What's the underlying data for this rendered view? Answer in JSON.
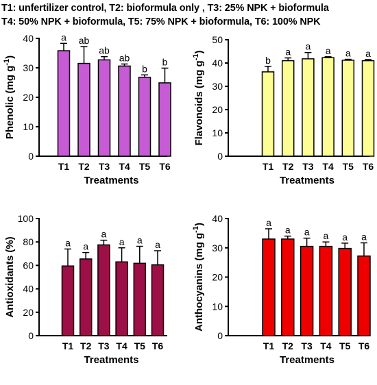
{
  "caption": {
    "line1": "T1: unfertilizer control, T2: bioformula only , T3: 25% NPK + bioformula",
    "line2": "T4: 50% NPK + bioformula, T5: 75% NPK + bioformula, T6: 100% NPK"
  },
  "chart_data": [
    {
      "type": "bar",
      "panel": "phenolic",
      "ylabel": "Phenolic  (mg g",
      "ylabel_sup": "-1",
      "ylabel_end": ")",
      "xlabel": "Treatments",
      "categories": [
        "T1",
        "T2",
        "T3",
        "T4",
        "T5",
        "T6"
      ],
      "values": [
        35.8,
        31.5,
        32.7,
        30.6,
        26.8,
        24.9
      ],
      "errors": [
        2.5,
        5.7,
        1.1,
        0.7,
        0.8,
        5.0
      ],
      "letters": [
        "a",
        "ab",
        "ab",
        "ab",
        "b",
        "b"
      ],
      "ylim": [
        0,
        40
      ],
      "yticks": [
        0,
        10,
        20,
        30,
        40
      ],
      "bar_color": "#c75bd5",
      "grid": false
    },
    {
      "type": "bar",
      "panel": "flavonoids",
      "ylabel": "Flavonoids  (mg g",
      "ylabel_sup": "-1",
      "ylabel_end": ")",
      "xlabel": "Treatments",
      "categories": [
        "T1",
        "T2",
        "T3",
        "T4",
        "T5",
        "T6"
      ],
      "values": [
        36.2,
        41.0,
        41.8,
        42.3,
        41.2,
        41.0
      ],
      "errors": [
        2.4,
        1.2,
        2.7,
        0.4,
        0.4,
        0.5
      ],
      "letters": [
        "b",
        "a",
        "a",
        "a",
        "a",
        "a"
      ],
      "ylim": [
        0,
        50
      ],
      "yticks": [
        0,
        10,
        20,
        30,
        40,
        50
      ],
      "bar_color": "#fdfd96",
      "grid": false
    },
    {
      "type": "bar",
      "panel": "antioxidants",
      "ylabel": "Antioxidants (%)",
      "xlabel": "Treatments",
      "categories": [
        "T1",
        "T2",
        "T3",
        "T4",
        "T5",
        "T6"
      ],
      "values": [
        59.5,
        65.5,
        77.5,
        63.0,
        61.8,
        60.5
      ],
      "errors": [
        14.5,
        5.5,
        4.0,
        12.0,
        14.5,
        12.0
      ],
      "letters": [
        "a",
        "a",
        "a",
        "a",
        "a",
        "a"
      ],
      "ylim": [
        0,
        100
      ],
      "yticks": [
        0,
        20,
        40,
        60,
        80,
        100
      ],
      "bar_color": "#9c0f47",
      "grid": false
    },
    {
      "type": "bar",
      "panel": "anthocyanins",
      "ylabel": "Anthocyanins  (mg g",
      "ylabel_sup": "-1",
      "ylabel_end": ")",
      "xlabel": "Treatments",
      "categories": [
        "T1",
        "T2",
        "T3",
        "T4",
        "T5",
        "T6"
      ],
      "values": [
        33.0,
        33.0,
        30.5,
        30.5,
        29.8,
        27.2
      ],
      "errors": [
        3.5,
        1.0,
        2.8,
        1.5,
        1.8,
        4.5
      ],
      "letters": [
        "a",
        "a",
        "a",
        "a",
        "a",
        "a"
      ],
      "ylim": [
        0,
        40
      ],
      "yticks": [
        0,
        10,
        20,
        30,
        40
      ],
      "bar_color": "#ee0000",
      "grid": false
    }
  ]
}
